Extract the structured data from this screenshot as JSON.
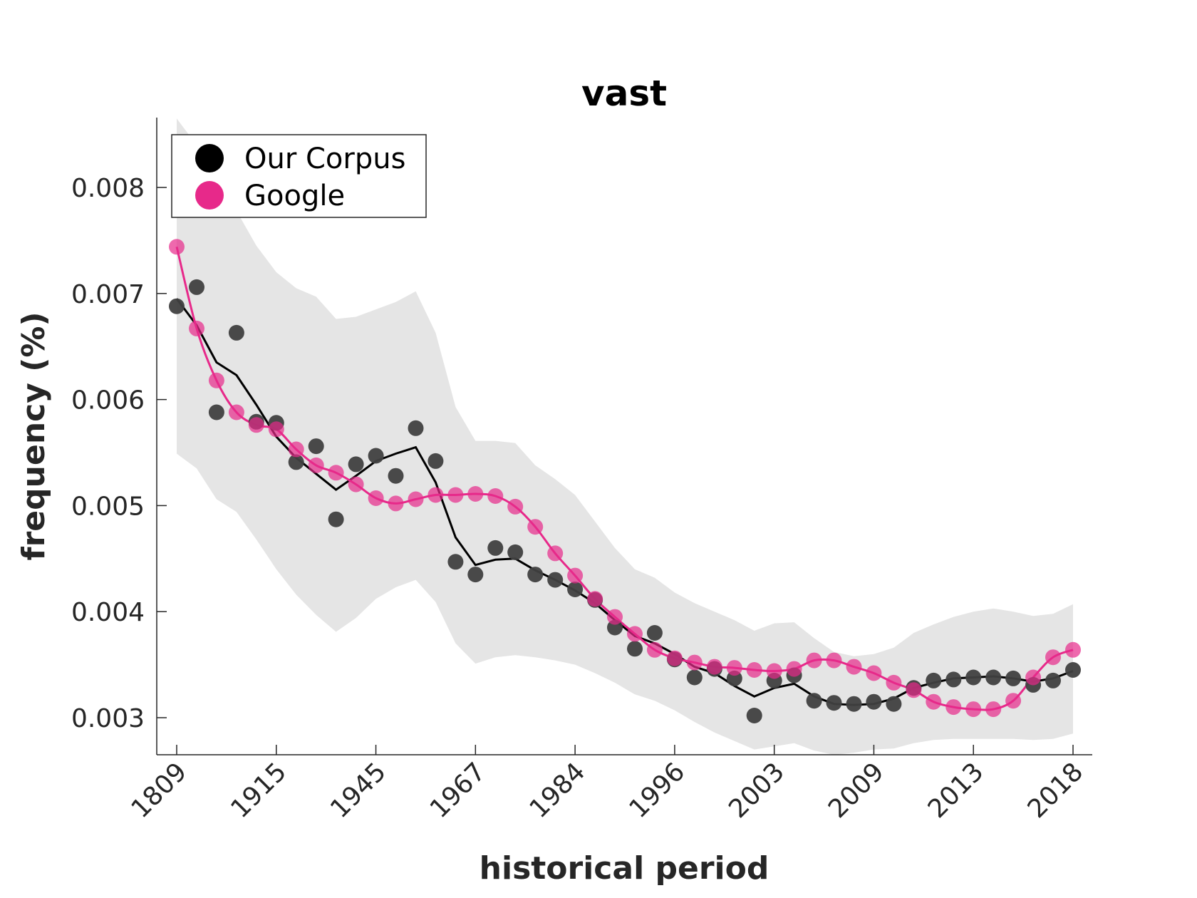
{
  "chart_data": {
    "type": "scatter",
    "title": "vast",
    "xlabel": "historical period",
    "ylabel": "frequency (%)",
    "x_tick_labels": [
      "1809",
      "1915",
      "1945",
      "1967",
      "1984",
      "1996",
      "2003",
      "2009",
      "2013",
      "2018"
    ],
    "y_ticks": [
      0.003,
      0.004,
      0.005,
      0.006,
      0.007,
      0.008
    ],
    "y_tick_labels": [
      "0.003",
      "0.004",
      "0.005",
      "0.006",
      "0.007",
      "0.008"
    ],
    "ylim": [
      0.00265,
      0.00865
    ],
    "n_points": 46,
    "legend": {
      "placement": "top-left",
      "entries": [
        {
          "label": "Our Corpus",
          "color": "#000000"
        },
        {
          "label": "Google",
          "color": "#e7298a"
        }
      ]
    },
    "series": [
      {
        "name": "Our Corpus",
        "color": "#404040",
        "points": [
          0.00688,
          0.00706,
          0.00588,
          0.00663,
          0.00579,
          0.00578,
          0.00541,
          0.00556,
          0.00487,
          0.00539,
          0.00547,
          0.00528,
          0.00573,
          0.00542,
          0.00447,
          0.00435,
          0.0046,
          0.00456,
          0.00435,
          0.0043,
          0.00421,
          0.00411,
          0.00385,
          0.00365,
          0.0038,
          0.00355,
          0.00338,
          0.00346,
          0.00337,
          0.00302,
          0.00335,
          0.0034,
          0.00316,
          0.00314,
          0.00313,
          0.00315,
          0.00313,
          0.00328,
          0.00335,
          0.00336,
          0.00338,
          0.00338,
          0.00337,
          0.00331,
          0.00335,
          0.00345
        ],
        "trend": [
          0.00695,
          0.0067,
          0.00635,
          0.00623,
          0.00595,
          0.00565,
          0.00545,
          0.0053,
          0.00515,
          0.00528,
          0.00542,
          0.00549,
          0.00555,
          0.00522,
          0.0047,
          0.00444,
          0.00449,
          0.0045,
          0.00439,
          0.0043,
          0.0042,
          0.00408,
          0.00392,
          0.00377,
          0.0037,
          0.0036,
          0.00348,
          0.00342,
          0.0033,
          0.0032,
          0.00328,
          0.00332,
          0.0032,
          0.00313,
          0.00312,
          0.00313,
          0.00318,
          0.00328,
          0.00333,
          0.00337,
          0.00338,
          0.00339,
          0.00337,
          0.00334,
          0.00337,
          0.00344
        ]
      },
      {
        "name": "Google",
        "color": "#e7298a",
        "points": [
          0.00744,
          0.00667,
          0.00618,
          0.00588,
          0.00576,
          0.00572,
          0.00553,
          0.00538,
          0.00531,
          0.0052,
          0.00507,
          0.00502,
          0.00506,
          0.0051,
          0.0051,
          0.00511,
          0.00509,
          0.00499,
          0.0048,
          0.00455,
          0.00434,
          0.00412,
          0.00395,
          0.00379,
          0.00364,
          0.00356,
          0.00352,
          0.00348,
          0.00347,
          0.00345,
          0.00344,
          0.00346,
          0.00354,
          0.00354,
          0.00348,
          0.00342,
          0.00333,
          0.00326,
          0.00315,
          0.0031,
          0.00308,
          0.00308,
          0.00316,
          0.00338,
          0.00357,
          0.00364
        ]
      }
    ],
    "band": {
      "color": "#e5e5e5",
      "upper": [
        0.00865,
        0.0084,
        0.008,
        0.00778,
        0.00745,
        0.0072,
        0.00705,
        0.00697,
        0.00676,
        0.00678,
        0.00685,
        0.00692,
        0.00702,
        0.00663,
        0.00593,
        0.00561,
        0.00561,
        0.00559,
        0.00538,
        0.00525,
        0.0051,
        0.00485,
        0.0046,
        0.0044,
        0.00432,
        0.00418,
        0.00408,
        0.004,
        0.00392,
        0.00382,
        0.00389,
        0.0039,
        0.00375,
        0.00362,
        0.00358,
        0.0036,
        0.00366,
        0.0038,
        0.00388,
        0.00395,
        0.004,
        0.00403,
        0.004,
        0.00396,
        0.00398,
        0.00407
      ],
      "lower": [
        0.00549,
        0.00535,
        0.00506,
        0.00494,
        0.00468,
        0.0044,
        0.00416,
        0.00397,
        0.00381,
        0.00394,
        0.00412,
        0.00423,
        0.0043,
        0.00409,
        0.0037,
        0.00351,
        0.00357,
        0.00359,
        0.00357,
        0.00354,
        0.0035,
        0.00342,
        0.00333,
        0.00322,
        0.00316,
        0.00307,
        0.00296,
        0.00286,
        0.00278,
        0.0027,
        0.00273,
        0.00276,
        0.00269,
        0.00265,
        0.00267,
        0.0027,
        0.00271,
        0.00276,
        0.00279,
        0.0028,
        0.0028,
        0.0028,
        0.0028,
        0.00279,
        0.0028,
        0.00285
      ]
    }
  }
}
